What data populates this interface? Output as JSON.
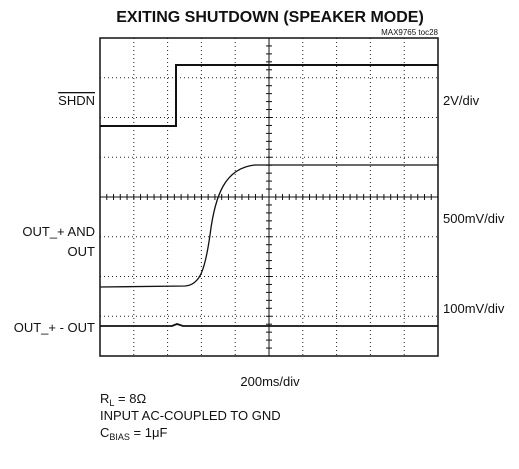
{
  "title": "EXITING SHUTDOWN (SPEAKER MODE)",
  "figure_code": "MAX9765 toc28",
  "left_labels": [
    "SHDN",
    "OUT_+ AND",
    "OUT",
    "OUT_+ - OUT"
  ],
  "right_labels": [
    "2V/div",
    "500mV/div",
    "100mV/div"
  ],
  "time_scale": "200ms/div",
  "notes": [
    {
      "symbol": "R",
      "sub": "L",
      "rest": " = 8Ω"
    },
    {
      "text": "INPUT AC-COUPLED TO GND"
    },
    {
      "symbol": "C",
      "sub": "BIAS",
      "rest": " = 1μF"
    }
  ]
}
